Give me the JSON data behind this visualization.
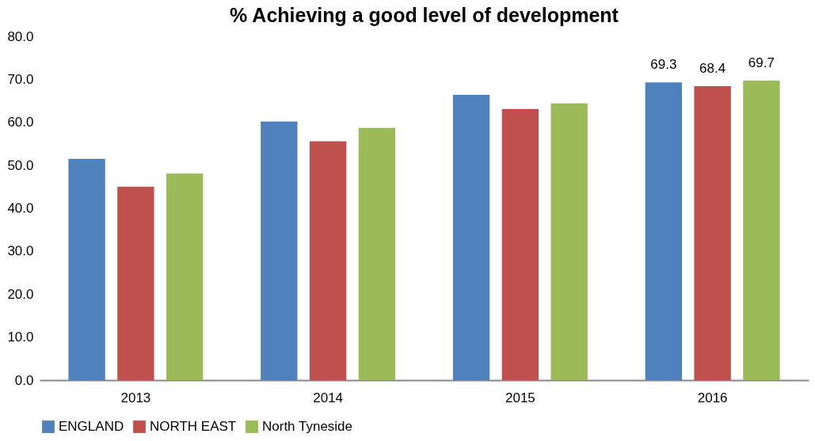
{
  "chart_data": {
    "type": "bar",
    "title": "% Achieving a good level of development",
    "categories": [
      "2013",
      "2014",
      "2015",
      "2016"
    ],
    "series": [
      {
        "name": "ENGLAND",
        "color": "#4f81bd",
        "values": [
          51.5,
          60.2,
          66.4,
          69.3
        ],
        "value_labels": [
          null,
          null,
          null,
          "69.3"
        ]
      },
      {
        "name": "NORTH EAST",
        "color": "#c0504d",
        "values": [
          45.0,
          55.6,
          63.1,
          68.4
        ],
        "value_labels": [
          null,
          null,
          null,
          "68.4"
        ]
      },
      {
        "name": "North Tyneside",
        "color": "#9bbb59",
        "values": [
          48.1,
          58.7,
          64.4,
          69.7
        ],
        "value_labels": [
          null,
          null,
          null,
          "69.7"
        ]
      }
    ],
    "ylim": [
      0,
      80
    ],
    "yticks": [
      {
        "value": 0,
        "label": "0.0"
      },
      {
        "value": 10,
        "label": "10.0"
      },
      {
        "value": 20,
        "label": "20.0"
      },
      {
        "value": 30,
        "label": "30.0"
      },
      {
        "value": 40,
        "label": "40.0"
      },
      {
        "value": 50,
        "label": "50.0"
      },
      {
        "value": 60,
        "label": "60.0"
      },
      {
        "value": 70,
        "label": "70.0"
      },
      {
        "value": 80,
        "label": "80.0"
      }
    ],
    "grid": false,
    "legend": "bottom"
  }
}
